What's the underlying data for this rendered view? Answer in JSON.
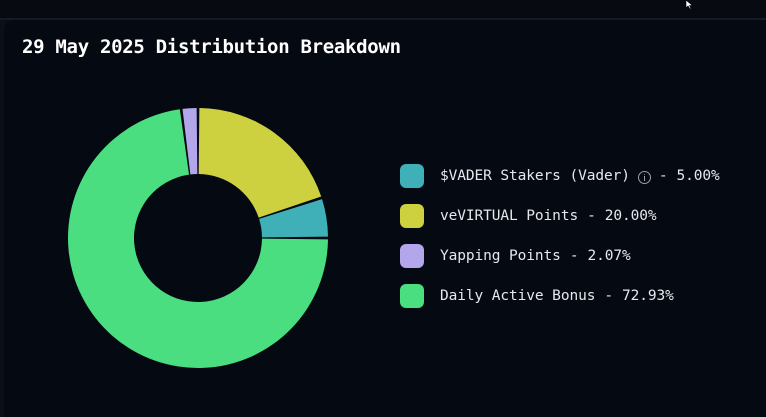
{
  "title": "29 May 2025 Distribution Breakdown",
  "chart_data": {
    "type": "pie",
    "donut": true,
    "title": "29 May 2025 Distribution Breakdown",
    "legend_position": "right",
    "slices": [
      {
        "label": "$VADER Stakers (Vader)",
        "value": 5.0,
        "value_text": "5.00%",
        "color": "#3fb0b7",
        "has_info_icon": true
      },
      {
        "label": "veVIRTUAL Points",
        "value": 20.0,
        "value_text": "20.00%",
        "color": "#cdd140"
      },
      {
        "label": "Yapping Points",
        "value": 2.07,
        "value_text": "2.07%",
        "color": "#b4a6ea"
      },
      {
        "label": "Daily Active Bonus",
        "value": 72.93,
        "value_text": "72.93%",
        "color": "#4ade80"
      }
    ]
  },
  "legend": [
    {
      "label": "$VADER Stakers (Vader)",
      "sep": "-",
      "value_text": "5.00%"
    },
    {
      "label": "veVIRTUAL Points",
      "sep": "-",
      "value_text": "20.00%"
    },
    {
      "label": "Yapping Points",
      "sep": "-",
      "value_text": "2.07%"
    },
    {
      "label": "Daily Active Bonus",
      "sep": "-",
      "value_text": "72.93%"
    }
  ],
  "icons": {
    "info": "info-icon",
    "cursor": "mouse-cursor-icon"
  }
}
